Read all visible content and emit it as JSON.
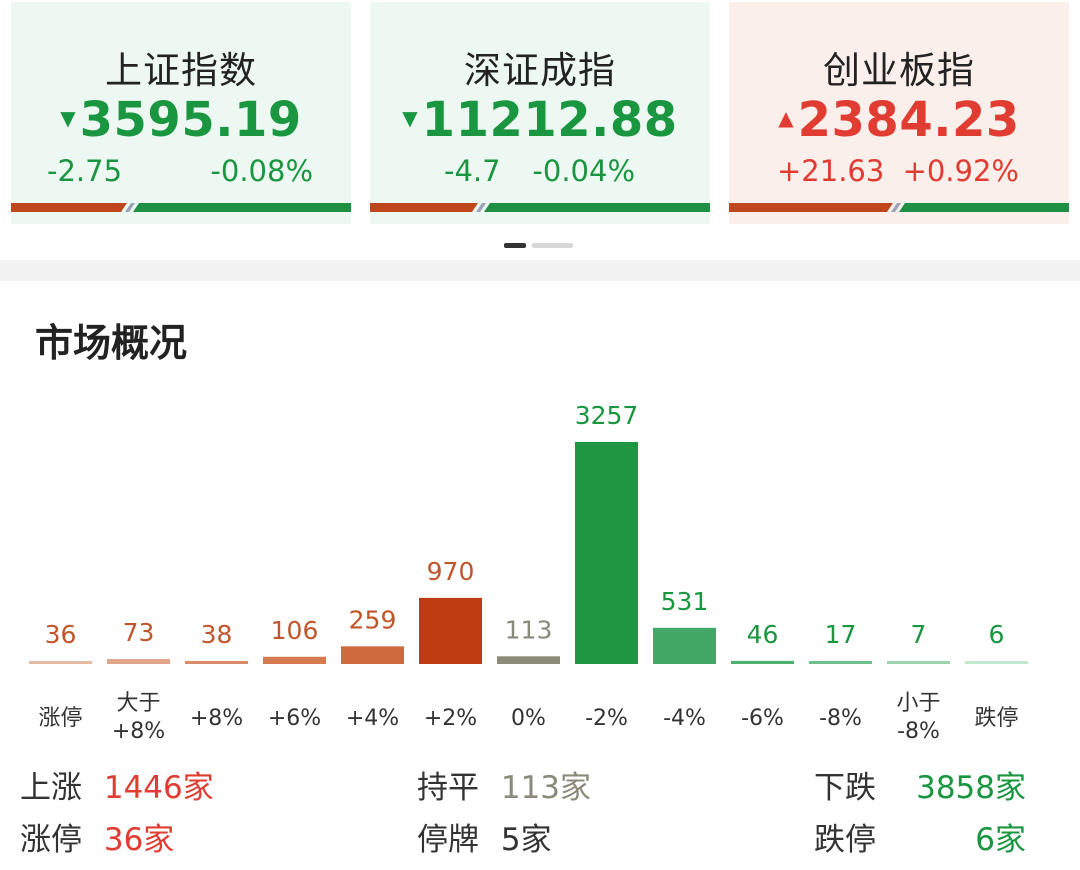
{
  "indices": [
    {
      "name": "上证指数",
      "arrow": "▼",
      "value": "3595.19",
      "change": "-2.75",
      "pct": "-0.08%",
      "direction": "down"
    },
    {
      "name": "深证成指",
      "arrow": "▼",
      "value": "11212.88",
      "change": "-4.7",
      "pct": "-0.04%",
      "direction": "down"
    },
    {
      "name": "创业板指",
      "arrow": "▲",
      "value": "2384.23",
      "change": "+21.63",
      "pct": "+0.92%",
      "direction": "up"
    }
  ],
  "colors": {
    "up": "#e03c31",
    "down": "#1a9641",
    "flat": "#8a8a7a",
    "strip_red": "#c0461e",
    "strip_green": "#1e8f43"
  },
  "market": {
    "title": "市场概况",
    "summary": {
      "up_label": "上涨",
      "up_value": "1446家",
      "flat_label": "持平",
      "flat_value": "113家",
      "down_label": "下跌",
      "down_value": "3858家",
      "limit_up_label": "涨停",
      "limit_up_value": "36家",
      "suspended_label": "停牌",
      "suspended_value": "5家",
      "limit_down_label": "跌停",
      "limit_down_value": "6家"
    }
  },
  "chart_data": {
    "type": "bar",
    "categories": [
      [
        "涨停"
      ],
      [
        "大于",
        "+8%"
      ],
      [
        "+8%"
      ],
      [
        "+6%"
      ],
      [
        "+4%"
      ],
      [
        "+2%"
      ],
      [
        "0%"
      ],
      [
        "-2%"
      ],
      [
        "-4%"
      ],
      [
        "-6%"
      ],
      [
        "-8%"
      ],
      [
        "小于",
        "-8%"
      ],
      [
        "跌停"
      ]
    ],
    "values": [
      36,
      73,
      38,
      106,
      259,
      970,
      113,
      3257,
      531,
      46,
      17,
      7,
      6
    ],
    "bar_colors": [
      "#e8b9a3",
      "#e3a58a",
      "#d98a68",
      "#d47b52",
      "#cf6a3e",
      "#bf3b12",
      "#8c8c7a",
      "#1e9642",
      "#43a866",
      "#4fb070",
      "#6cc08a",
      "#9ad3ad",
      "#c3e6cf"
    ],
    "label_colors": [
      "#c0562c",
      "#c0562c",
      "#c0562c",
      "#c0562c",
      "#c0562c",
      "#c0562c",
      "#8a8a7a",
      "#1a9641",
      "#1a9641",
      "#1a9641",
      "#1a9641",
      "#1a9641",
      "#1a9641"
    ],
    "ylim": [
      0,
      3257
    ]
  }
}
